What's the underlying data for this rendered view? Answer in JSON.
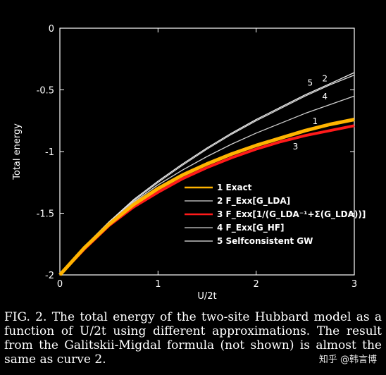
{
  "chart_data": {
    "type": "line",
    "title": "",
    "xlabel": "U/2t",
    "ylabel": "Total energy",
    "xlim": [
      0,
      3
    ],
    "ylim": [
      -2,
      0
    ],
    "xticks": [
      0,
      1,
      2,
      3
    ],
    "yticks": [
      0,
      -0.5,
      -1,
      -1.5,
      -2
    ],
    "xtick_labels": [
      "0",
      "1",
      "2",
      "3"
    ],
    "ytick_labels": [
      "0",
      "-0.5",
      "-1",
      "-1.5",
      "-2"
    ],
    "grid": false,
    "legend_position": "center",
    "series": [
      {
        "name": "1 Exact",
        "curve_label": "1",
        "color": "#ffb400",
        "x": [
          0,
          0.25,
          0.5,
          0.75,
          1.0,
          1.25,
          1.5,
          1.75,
          2.0,
          2.25,
          2.5,
          2.75,
          3.0
        ],
        "y": [
          -2.0,
          -1.78,
          -1.59,
          -1.43,
          -1.3,
          -1.19,
          -1.1,
          -1.02,
          -0.95,
          -0.89,
          -0.83,
          -0.78,
          -0.74
        ]
      },
      {
        "name": "2 F_Exx[G_LDA]",
        "curve_label": "2",
        "color": "#d8d8d8",
        "x": [
          0,
          0.25,
          0.5,
          0.75,
          1.0,
          1.25,
          1.5,
          1.75,
          2.0,
          2.25,
          2.5,
          2.75,
          3.0
        ],
        "y": [
          -2.0,
          -1.77,
          -1.57,
          -1.4,
          -1.25,
          -1.11,
          -0.98,
          -0.86,
          -0.75,
          -0.65,
          -0.55,
          -0.46,
          -0.38
        ]
      },
      {
        "name": "3 F_Exx[1/(G_LDA⁻¹+Σ(G_LDA))]",
        "curve_label": "3",
        "color": "#ff1a1a",
        "x": [
          0,
          0.25,
          0.5,
          0.75,
          1.0,
          1.25,
          1.5,
          1.75,
          2.0,
          2.25,
          2.5,
          2.75,
          3.0
        ],
        "y": [
          -2.0,
          -1.79,
          -1.6,
          -1.45,
          -1.33,
          -1.22,
          -1.13,
          -1.05,
          -0.98,
          -0.92,
          -0.87,
          -0.83,
          -0.79
        ]
      },
      {
        "name": "4 F_Exx[G_HF]",
        "curve_label": "4",
        "color": "#d0d0d0",
        "x": [
          0,
          0.25,
          0.5,
          0.75,
          1.0,
          1.25,
          1.5,
          1.75,
          2.0,
          2.25,
          2.5,
          2.75,
          3.0
        ],
        "y": [
          -2.0,
          -1.77,
          -1.58,
          -1.41,
          -1.27,
          -1.15,
          -1.04,
          -0.94,
          -0.85,
          -0.77,
          -0.69,
          -0.62,
          -0.55
        ]
      },
      {
        "name": "5 Selfconsistent GW",
        "curve_label": "5",
        "color": "#e8e8e8",
        "x": [
          0,
          0.25,
          0.5,
          0.75,
          1.0,
          1.25,
          1.5,
          1.75,
          2.0,
          2.25,
          2.5,
          2.75,
          3.0
        ],
        "y": [
          -2.0,
          -1.77,
          -1.57,
          -1.39,
          -1.24,
          -1.1,
          -0.97,
          -0.85,
          -0.74,
          -0.64,
          -0.54,
          -0.45,
          -0.36
        ]
      }
    ]
  },
  "caption": "FIG. 2.   The total energy of the two-site Hubbard model as a function of U/2t using different approximations.  The result from the Galitskii-Migdal formula (not shown) is almost the same as curve 2.",
  "watermark": "知乎 @韩言博"
}
